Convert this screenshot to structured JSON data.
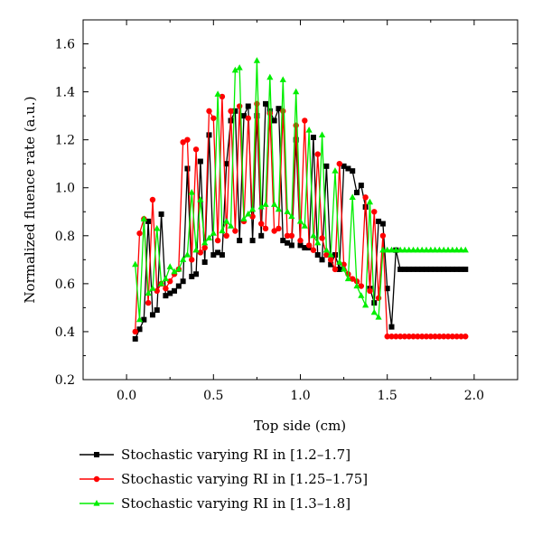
{
  "chart_data": {
    "type": "line",
    "title": "",
    "xlabel": "Top side (cm)",
    "ylabel": "Normalized fluence rate (a.u.)",
    "xlim": [
      -0.25,
      2.25
    ],
    "ylim": [
      0.2,
      1.7
    ],
    "xticks": [
      "0.0",
      "0.5",
      "1.0",
      "1.5",
      "2.0"
    ],
    "yticks": [
      "0.2",
      "0.4",
      "0.6",
      "0.8",
      "1.0",
      "1.2",
      "1.4",
      "1.6"
    ],
    "grid": false,
    "legend_position": "bottom",
    "series": [
      {
        "name": "Stochastic varying RI in [1.2–1.7]",
        "color": "#000000",
        "marker": "square",
        "x": [
          0.05,
          0.075,
          0.1,
          0.125,
          0.15,
          0.175,
          0.2,
          0.225,
          0.25,
          0.275,
          0.3,
          0.325,
          0.35,
          0.375,
          0.4,
          0.425,
          0.45,
          0.475,
          0.5,
          0.525,
          0.55,
          0.575,
          0.6,
          0.625,
          0.65,
          0.675,
          0.7,
          0.725,
          0.75,
          0.775,
          0.8,
          0.825,
          0.85,
          0.875,
          0.9,
          0.925,
          0.95,
          0.975,
          1.0,
          1.025,
          1.05,
          1.075,
          1.1,
          1.125,
          1.15,
          1.175,
          1.2,
          1.225,
          1.25,
          1.275,
          1.3,
          1.325,
          1.35,
          1.375,
          1.4,
          1.425,
          1.45,
          1.475,
          1.5,
          1.525,
          1.55,
          1.575,
          1.6,
          1.625,
          1.65,
          1.675,
          1.7,
          1.725,
          1.75,
          1.775,
          1.8,
          1.825,
          1.85,
          1.875,
          1.9,
          1.925,
          1.95
        ],
        "y": [
          0.37,
          0.41,
          0.45,
          0.86,
          0.47,
          0.49,
          0.89,
          0.55,
          0.56,
          0.57,
          0.59,
          0.61,
          1.08,
          0.63,
          0.64,
          1.11,
          0.69,
          1.22,
          0.72,
          0.73,
          0.72,
          1.1,
          1.28,
          1.32,
          0.78,
          1.3,
          1.34,
          0.78,
          1.3,
          0.8,
          1.35,
          1.32,
          1.28,
          1.33,
          0.78,
          0.77,
          0.76,
          1.2,
          0.76,
          0.75,
          0.75,
          1.21,
          0.72,
          0.7,
          1.09,
          0.68,
          0.72,
          0.66,
          1.09,
          1.08,
          1.07,
          0.98,
          1.01,
          0.92,
          0.58,
          0.52,
          0.86,
          0.85,
          0.58,
          0.42,
          0.74,
          0.66,
          0.66,
          0.66,
          0.66,
          0.66,
          0.66,
          0.66,
          0.66,
          0.66,
          0.66,
          0.66,
          0.66,
          0.66,
          0.66,
          0.66,
          0.66
        ]
      },
      {
        "name": "Stochastic varying RI in [1.25–1.75]",
        "color": "#ff0000",
        "marker": "circle",
        "x": [
          0.05,
          0.075,
          0.1,
          0.125,
          0.15,
          0.175,
          0.2,
          0.225,
          0.25,
          0.275,
          0.3,
          0.325,
          0.35,
          0.375,
          0.4,
          0.425,
          0.45,
          0.475,
          0.5,
          0.525,
          0.55,
          0.575,
          0.6,
          0.625,
          0.65,
          0.675,
          0.7,
          0.725,
          0.75,
          0.775,
          0.8,
          0.825,
          0.85,
          0.875,
          0.9,
          0.925,
          0.95,
          0.975,
          1.0,
          1.025,
          1.05,
          1.075,
          1.1,
          1.125,
          1.15,
          1.175,
          1.2,
          1.225,
          1.25,
          1.275,
          1.3,
          1.325,
          1.35,
          1.375,
          1.4,
          1.425,
          1.45,
          1.475,
          1.5,
          1.525,
          1.55,
          1.575,
          1.6,
          1.625,
          1.65,
          1.675,
          1.7,
          1.725,
          1.75,
          1.775,
          1.8,
          1.825,
          1.85,
          1.875,
          1.9,
          1.925,
          1.95
        ],
        "y": [
          0.4,
          0.81,
          0.87,
          0.52,
          0.95,
          0.57,
          0.6,
          0.58,
          0.61,
          0.64,
          0.66,
          1.19,
          1.2,
          0.7,
          1.16,
          0.73,
          0.75,
          1.32,
          1.29,
          0.78,
          1.38,
          0.8,
          1.32,
          0.82,
          1.34,
          0.86,
          1.29,
          0.88,
          1.35,
          0.85,
          0.83,
          1.31,
          0.82,
          0.83,
          1.32,
          0.8,
          0.8,
          1.26,
          0.78,
          1.28,
          0.76,
          0.74,
          1.14,
          0.79,
          0.72,
          0.7,
          0.66,
          1.1,
          0.68,
          0.64,
          0.62,
          0.61,
          0.59,
          0.96,
          0.57,
          0.9,
          0.54,
          0.8,
          0.38,
          0.38,
          0.38,
          0.38,
          0.38,
          0.38,
          0.38,
          0.38,
          0.38,
          0.38,
          0.38,
          0.38,
          0.38,
          0.38,
          0.38,
          0.38,
          0.38,
          0.38,
          0.38
        ]
      },
      {
        "name": "Stochastic varying RI in [1.3–1.8]",
        "color": "#00ee00",
        "marker": "triangle",
        "x": [
          0.05,
          0.075,
          0.1,
          0.125,
          0.15,
          0.175,
          0.2,
          0.225,
          0.25,
          0.275,
          0.3,
          0.325,
          0.35,
          0.375,
          0.4,
          0.425,
          0.45,
          0.475,
          0.5,
          0.525,
          0.55,
          0.575,
          0.6,
          0.625,
          0.65,
          0.675,
          0.7,
          0.725,
          0.75,
          0.775,
          0.8,
          0.825,
          0.85,
          0.875,
          0.9,
          0.925,
          0.95,
          0.975,
          1.0,
          1.025,
          1.05,
          1.075,
          1.1,
          1.125,
          1.15,
          1.175,
          1.2,
          1.225,
          1.25,
          1.275,
          1.3,
          1.325,
          1.35,
          1.375,
          1.4,
          1.425,
          1.45,
          1.475,
          1.5,
          1.525,
          1.55,
          1.575,
          1.6,
          1.625,
          1.65,
          1.675,
          1.7,
          1.725,
          1.75,
          1.775,
          1.8,
          1.825,
          1.85,
          1.875,
          1.9,
          1.925,
          1.95
        ],
        "y": [
          0.68,
          0.45,
          0.87,
          0.56,
          0.58,
          0.83,
          0.6,
          0.62,
          0.67,
          0.65,
          0.66,
          0.7,
          0.72,
          0.98,
          0.74,
          0.95,
          0.77,
          0.79,
          0.81,
          1.39,
          0.82,
          0.86,
          0.84,
          1.49,
          1.5,
          0.87,
          0.89,
          0.91,
          1.53,
          0.92,
          0.93,
          1.46,
          0.93,
          0.91,
          1.45,
          0.9,
          0.88,
          1.4,
          0.86,
          0.84,
          1.24,
          0.8,
          0.77,
          1.22,
          0.74,
          0.72,
          1.07,
          0.69,
          0.66,
          0.62,
          0.96,
          0.59,
          0.55,
          0.51,
          0.94,
          0.48,
          0.46,
          0.74,
          0.74,
          0.74,
          0.74,
          0.74,
          0.74,
          0.74,
          0.74,
          0.74,
          0.74,
          0.74,
          0.74,
          0.74,
          0.74,
          0.74,
          0.74,
          0.74,
          0.74,
          0.74,
          0.74
        ]
      }
    ]
  }
}
